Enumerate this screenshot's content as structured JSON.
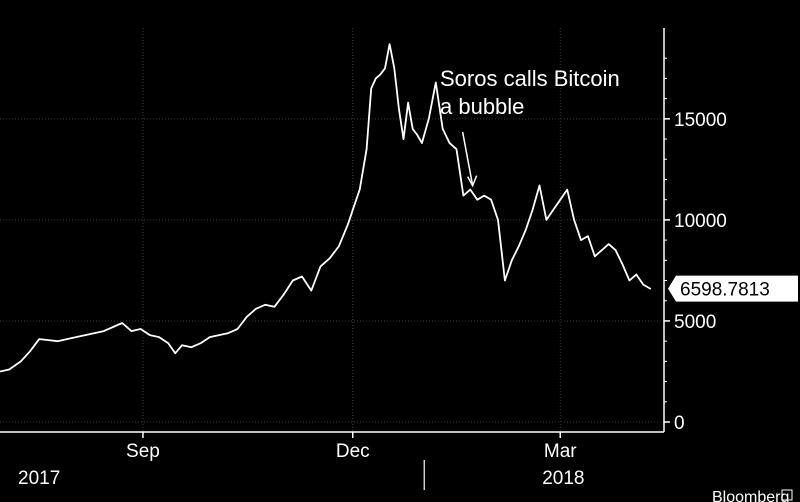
{
  "chart_data": {
    "type": "line",
    "title": "",
    "xlabel": "",
    "ylabel": "",
    "ylim": [
      0,
      19000
    ],
    "grid": true,
    "legend": "none",
    "y_ticks": [
      0,
      5000,
      10000,
      15000
    ],
    "x_month_labels": [
      {
        "label": "Sep",
        "date": "2017-09-01"
      },
      {
        "label": "Dec",
        "date": "2017-12-01"
      },
      {
        "label": "Mar",
        "date": "2018-03-01"
      }
    ],
    "x_year_labels": [
      {
        "label": "2017",
        "date": "2017-07-01"
      },
      {
        "label": "2018",
        "date": "2018-01-01"
      }
    ],
    "year_divider_date": "2018-01-01",
    "x_range": [
      "2017-07-01",
      "2018-04-15"
    ],
    "series": [
      {
        "color": "#ffffff",
        "points": [
          [
            "2017-07-01",
            2500
          ],
          [
            "2017-07-05",
            2600
          ],
          [
            "2017-07-10",
            3000
          ],
          [
            "2017-07-14",
            3500
          ],
          [
            "2017-07-18",
            4100
          ],
          [
            "2017-07-22",
            4050
          ],
          [
            "2017-07-26",
            4000
          ],
          [
            "2017-07-30",
            4100
          ],
          [
            "2017-08-03",
            4200
          ],
          [
            "2017-08-07",
            4300
          ],
          [
            "2017-08-11",
            4400
          ],
          [
            "2017-08-15",
            4500
          ],
          [
            "2017-08-19",
            4700
          ],
          [
            "2017-08-23",
            4900
          ],
          [
            "2017-08-27",
            4500
          ],
          [
            "2017-08-31",
            4600
          ],
          [
            "2017-09-04",
            4300
          ],
          [
            "2017-09-08",
            4200
          ],
          [
            "2017-09-12",
            3900
          ],
          [
            "2017-09-15",
            3400
          ],
          [
            "2017-09-18",
            3800
          ],
          [
            "2017-09-22",
            3700
          ],
          [
            "2017-09-26",
            3900
          ],
          [
            "2017-09-30",
            4200
          ],
          [
            "2017-10-04",
            4300
          ],
          [
            "2017-10-08",
            4400
          ],
          [
            "2017-10-12",
            4600
          ],
          [
            "2017-10-16",
            5200
          ],
          [
            "2017-10-20",
            5600
          ],
          [
            "2017-10-24",
            5800
          ],
          [
            "2017-10-28",
            5700
          ],
          [
            "2017-11-01",
            6300
          ],
          [
            "2017-11-05",
            7000
          ],
          [
            "2017-11-09",
            7200
          ],
          [
            "2017-11-13",
            6500
          ],
          [
            "2017-11-17",
            7700
          ],
          [
            "2017-11-21",
            8100
          ],
          [
            "2017-11-25",
            8700
          ],
          [
            "2017-11-29",
            9800
          ],
          [
            "2017-12-01",
            10500
          ],
          [
            "2017-12-04",
            11500
          ],
          [
            "2017-12-07",
            13500
          ],
          [
            "2017-12-09",
            16500
          ],
          [
            "2017-12-11",
            17000
          ],
          [
            "2017-12-13",
            17200
          ],
          [
            "2017-12-15",
            17500
          ],
          [
            "2017-12-17",
            18700
          ],
          [
            "2017-12-19",
            17500
          ],
          [
            "2017-12-21",
            15500
          ],
          [
            "2017-12-23",
            14000
          ],
          [
            "2017-12-25",
            15800
          ],
          [
            "2017-12-27",
            14500
          ],
          [
            "2017-12-29",
            14200
          ],
          [
            "2017-12-31",
            13800
          ],
          [
            "2018-01-03",
            15000
          ],
          [
            "2018-01-06",
            16800
          ],
          [
            "2018-01-09",
            14500
          ],
          [
            "2018-01-12",
            13800
          ],
          [
            "2018-01-15",
            13500
          ],
          [
            "2018-01-18",
            11200
          ],
          [
            "2018-01-21",
            11500
          ],
          [
            "2018-01-24",
            11000
          ],
          [
            "2018-01-27",
            11200
          ],
          [
            "2018-01-30",
            11000
          ],
          [
            "2018-02-02",
            10000
          ],
          [
            "2018-02-05",
            7000
          ],
          [
            "2018-02-08",
            8000
          ],
          [
            "2018-02-11",
            8700
          ],
          [
            "2018-02-14",
            9500
          ],
          [
            "2018-02-17",
            10500
          ],
          [
            "2018-02-20",
            11700
          ],
          [
            "2018-02-23",
            10000
          ],
          [
            "2018-02-26",
            10500
          ],
          [
            "2018-03-01",
            11000
          ],
          [
            "2018-03-04",
            11500
          ],
          [
            "2018-03-07",
            10000
          ],
          [
            "2018-03-10",
            9000
          ],
          [
            "2018-03-13",
            9200
          ],
          [
            "2018-03-16",
            8200
          ],
          [
            "2018-03-19",
            8500
          ],
          [
            "2018-03-22",
            8800
          ],
          [
            "2018-03-25",
            8500
          ],
          [
            "2018-03-28",
            7800
          ],
          [
            "2018-03-31",
            7000
          ],
          [
            "2018-04-03",
            7300
          ],
          [
            "2018-04-06",
            6800
          ],
          [
            "2018-04-09",
            6598.7813
          ]
        ]
      }
    ],
    "last_value_label": "6598.7813",
    "annotations": [
      {
        "lines": [
          "Soros calls Bitcoin",
          "a bubble"
        ],
        "date": "2018-01-22",
        "value": 11300
      }
    ],
    "source": "Bloomberg"
  }
}
